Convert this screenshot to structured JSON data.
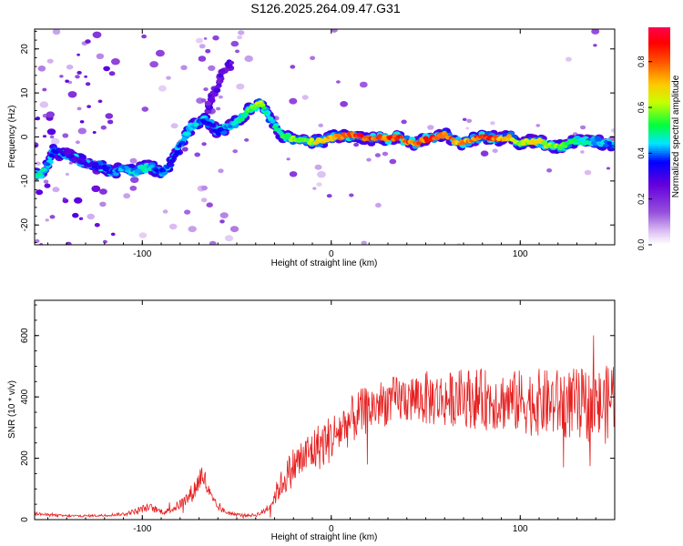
{
  "figure_title": "S126.2025.264.09.47.G31",
  "colors": {
    "line": "#e62020",
    "axis": "#000000",
    "background": "#ffffff"
  },
  "chart_data": [
    {
      "type": "heatmap",
      "title": "S126.2025.264.09.47.G31",
      "xlabel": "Height of straight line (km)",
      "ylabel": "Frequency (Hz)",
      "xlim": [
        -157,
        150
      ],
      "ylim": [
        -24.5,
        24.5
      ],
      "xticks": [
        -100,
        0,
        100
      ],
      "yticks": [
        -20,
        -10,
        0,
        10,
        20
      ],
      "grid": false,
      "colorbar": {
        "label": "Normalized spectral amplitude",
        "range": [
          0.0,
          0.95
        ],
        "ticks": [
          0.0,
          0.2,
          0.4,
          0.6,
          0.8
        ],
        "colormap": "rainbow (white-violet-purple-blue-cyan-green-yellow-orange-red-magenta)"
      },
      "ridge": {
        "x": [
          -157,
          -154,
          -150,
          -147,
          -140,
          -130,
          -120,
          -115,
          -110,
          -105,
          -100,
          -95,
          -90,
          -85,
          -80,
          -76,
          -72,
          -68,
          -64,
          -60,
          -56,
          -52,
          -48,
          -44,
          -40,
          -37,
          -35,
          -32,
          -28,
          -24,
          -20,
          -15,
          -10,
          -5,
          0,
          5,
          10,
          15,
          20,
          25,
          30,
          35,
          40,
          45,
          50,
          55,
          60,
          65,
          70,
          75,
          80,
          85,
          90,
          95,
          100,
          105,
          110,
          115,
          120,
          125,
          130,
          135,
          140,
          145,
          150
        ],
        "y": [
          -8,
          -9,
          -6,
          -3,
          -4,
          -6,
          -7,
          -8,
          -7,
          -8,
          -7,
          -7,
          -8,
          -6,
          -2,
          1,
          3,
          4,
          3,
          1,
          2,
          3,
          4,
          6,
          7,
          8,
          6,
          4,
          1,
          0,
          -0.5,
          -1,
          -1,
          -1,
          0,
          0,
          0.5,
          0,
          -0.5,
          0,
          -0.5,
          0,
          -1,
          -1.5,
          -0.5,
          0,
          0.5,
          -1,
          -1.5,
          -0.5,
          0,
          0,
          -0.5,
          0,
          -1.5,
          -1,
          -1,
          -2,
          -2.5,
          -1.5,
          -1,
          -1,
          -1,
          -1.5,
          -2
        ],
        "amplitude": [
          0.45,
          0.5,
          0.45,
          0.4,
          0.3,
          0.3,
          0.35,
          0.4,
          0.45,
          0.45,
          0.5,
          0.45,
          0.4,
          0.35,
          0.4,
          0.5,
          0.45,
          0.4,
          0.35,
          0.35,
          0.4,
          0.45,
          0.5,
          0.55,
          0.6,
          0.65,
          0.55,
          0.5,
          0.5,
          0.55,
          0.6,
          0.6,
          0.65,
          0.7,
          0.75,
          0.8,
          0.85,
          0.9,
          0.85,
          0.8,
          0.85,
          0.9,
          0.85,
          0.8,
          0.85,
          0.9,
          0.85,
          0.8,
          0.75,
          0.8,
          0.9,
          0.85,
          0.75,
          0.7,
          0.6,
          0.65,
          0.7,
          0.65,
          0.6,
          0.55,
          0.5,
          0.5,
          0.45,
          0.45,
          0.4
        ]
      },
      "secondary_branch": {
        "x": [
          -66,
          -62,
          -58,
          -55,
          -52
        ],
        "y": [
          6,
          10,
          14,
          16,
          17
        ]
      }
    },
    {
      "type": "line",
      "xlabel": "Height of straight line (km)",
      "ylabel": "SNR (10 * v/v)",
      "xlim": [
        -157,
        150
      ],
      "ylim": [
        0,
        715
      ],
      "xticks": [
        -100,
        0,
        100
      ],
      "yticks": [
        0,
        200,
        400,
        600
      ],
      "grid": false,
      "series": [
        {
          "x": [
            -157,
            -150,
            -140,
            -130,
            -120,
            -110,
            -105,
            -100,
            -96,
            -92,
            -88,
            -84,
            -80,
            -76,
            -72,
            -70,
            -68,
            -66,
            -64,
            -62,
            -60,
            -56,
            -52,
            -48,
            -44,
            -40,
            -36,
            -32,
            -30,
            -28,
            -24,
            -20,
            -15,
            -10,
            -5,
            0,
            5,
            10,
            15,
            20,
            25,
            30,
            35,
            40,
            45,
            50,
            55,
            60,
            65,
            70,
            75,
            80,
            85,
            90,
            95,
            100,
            105,
            110,
            115,
            120,
            125,
            130,
            135,
            140,
            145,
            150
          ],
          "values": [
            20,
            15,
            12,
            12,
            14,
            18,
            25,
            35,
            40,
            30,
            25,
            35,
            50,
            70,
            100,
            130,
            150,
            110,
            75,
            55,
            40,
            25,
            18,
            15,
            14,
            15,
            25,
            50,
            75,
            100,
            140,
            175,
            200,
            225,
            245,
            265,
            295,
            320,
            345,
            360,
            375,
            385,
            390,
            395,
            395,
            395,
            392,
            390,
            395,
            400,
            395,
            392,
            390,
            388,
            385,
            385,
            383,
            382,
            380,
            378,
            378,
            375,
            372,
            372,
            370,
            420
          ],
          "noise": [
            5,
            5,
            4,
            4,
            4,
            6,
            8,
            12,
            14,
            10,
            9,
            12,
            18,
            25,
            35,
            40,
            45,
            35,
            25,
            18,
            12,
            8,
            6,
            5,
            5,
            6,
            10,
            20,
            30,
            40,
            55,
            65,
            70,
            75,
            80,
            80,
            80,
            80,
            80,
            78,
            78,
            78,
            80,
            80,
            85,
            90,
            90,
            90,
            90,
            95,
            100,
            100,
            100,
            100,
            100,
            105,
            110,
            110,
            110,
            115,
            115,
            120,
            120,
            125,
            125,
            130
          ]
        }
      ]
    }
  ]
}
